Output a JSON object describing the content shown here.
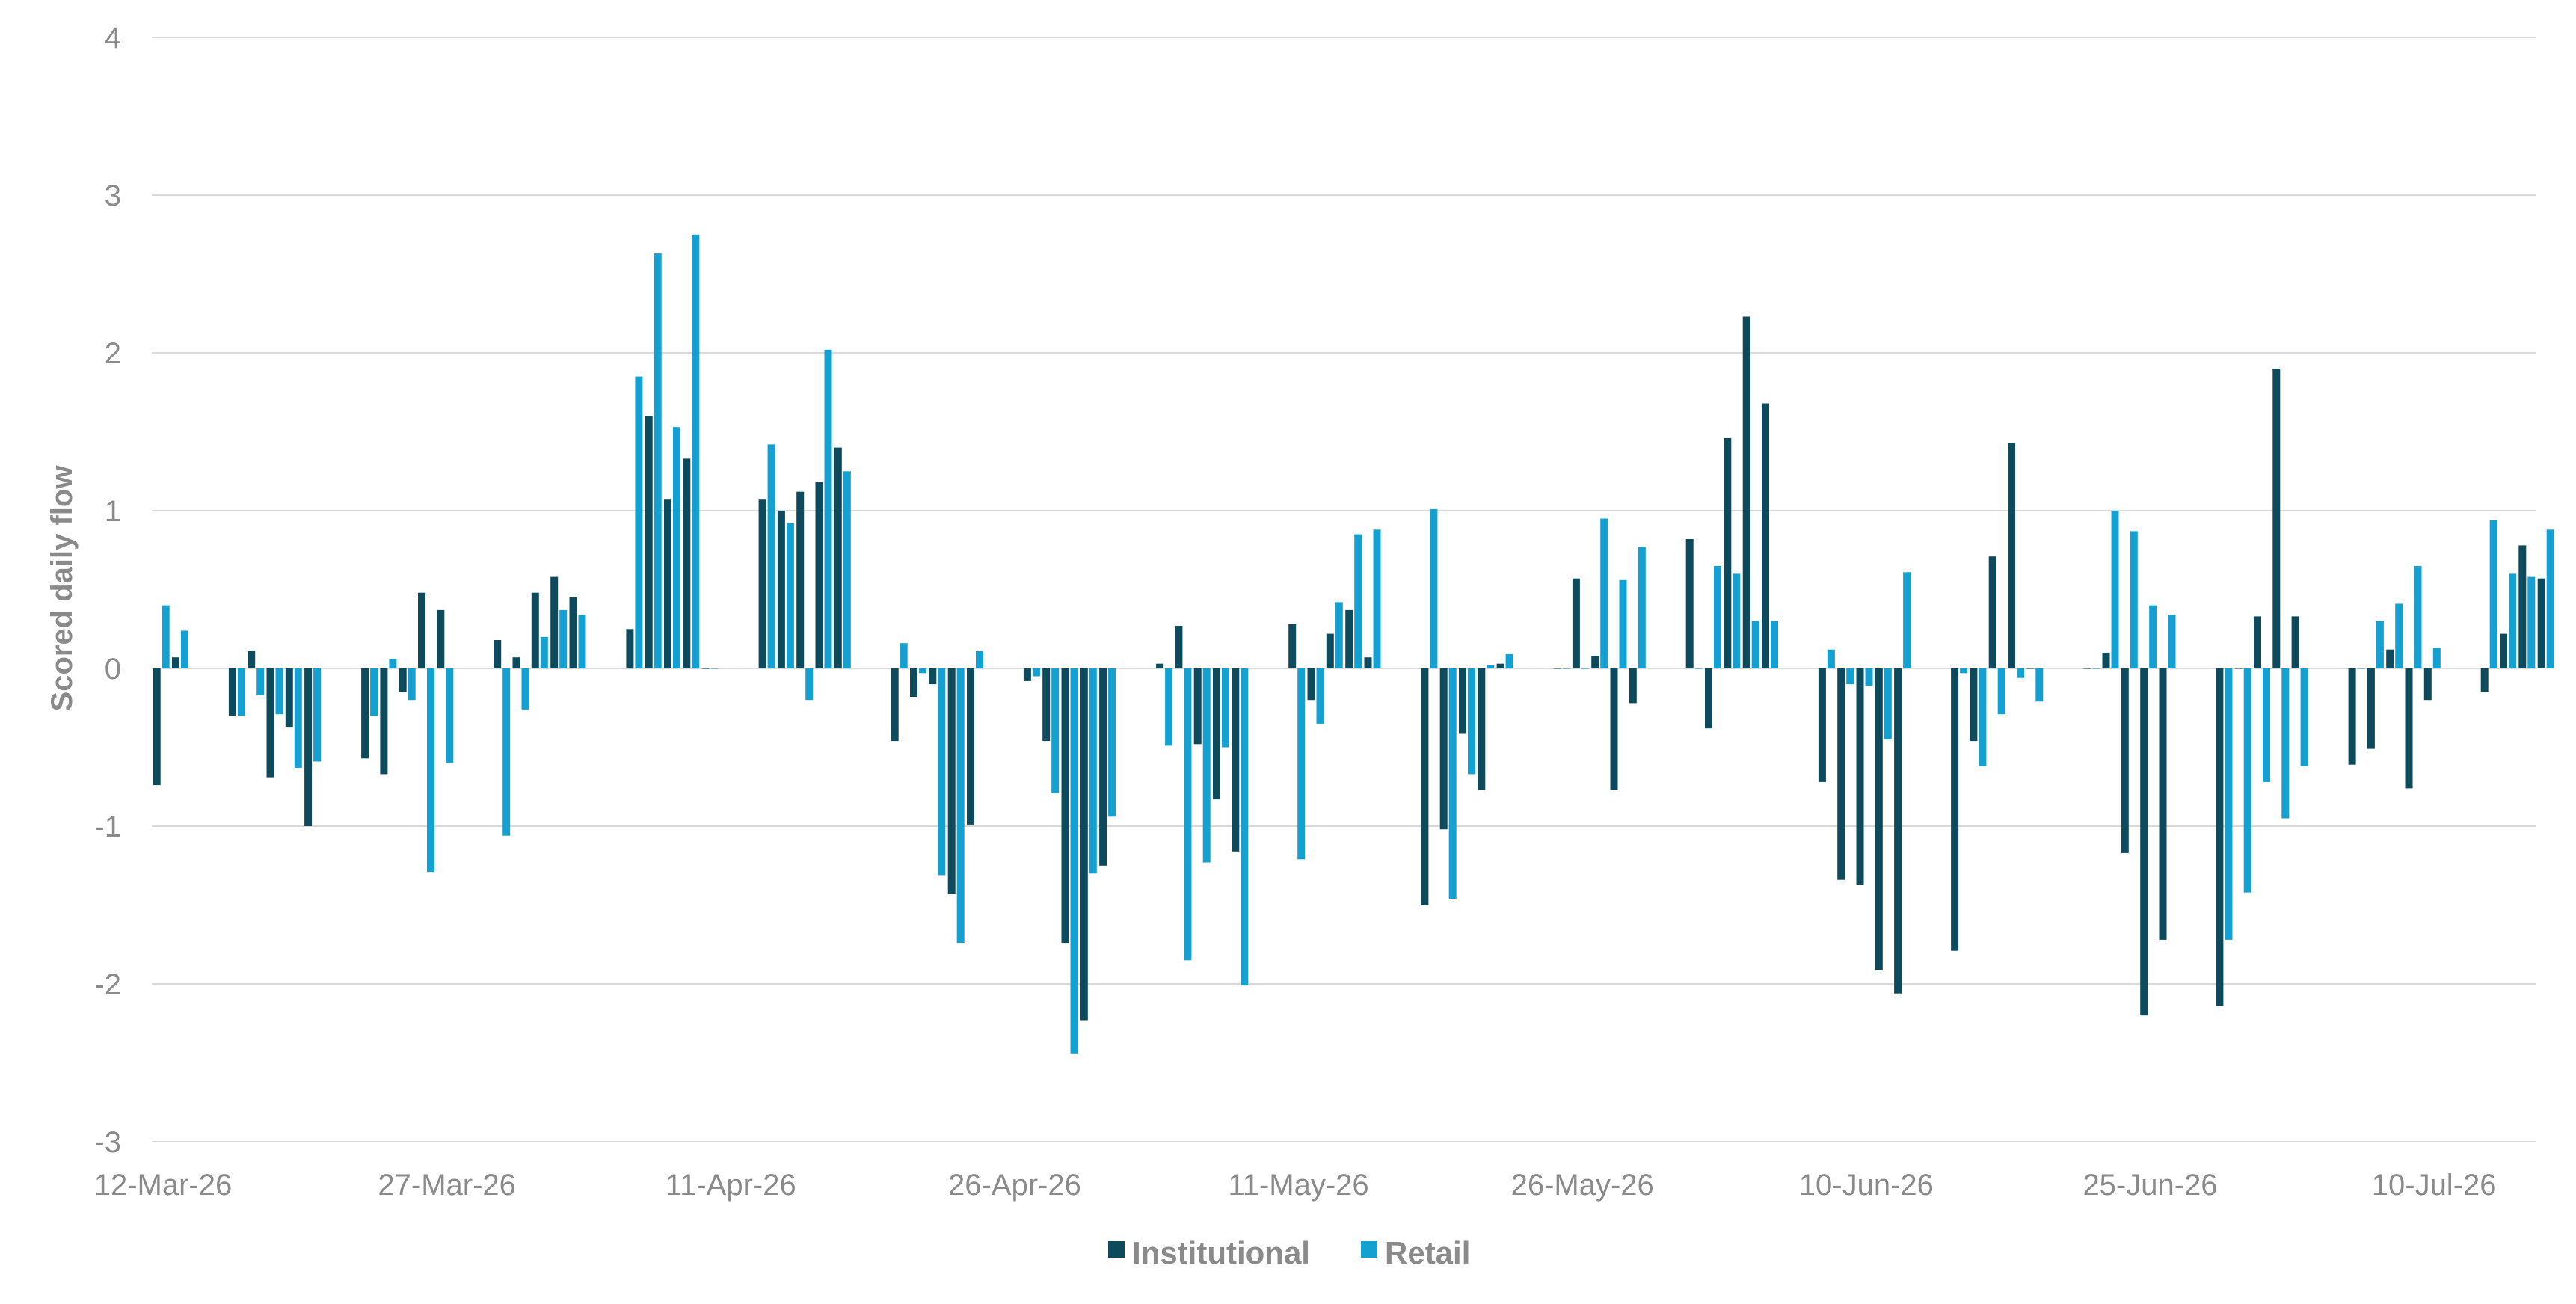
{
  "chart_data": {
    "type": "bar",
    "title": "",
    "xlabel": "",
    "ylabel": "Scored daily flow",
    "ylim": [
      -3,
      4
    ],
    "yticks": [
      4,
      3,
      2,
      1,
      0,
      -1,
      -2,
      -3
    ],
    "grid": true,
    "legend_position": "bottom-center",
    "start_date": "2026-03-12",
    "xtick_labels": [
      {
        "label": "12-Mar-26",
        "date": "2026-03-12"
      },
      {
        "label": "27-Mar-26",
        "date": "2026-03-27"
      },
      {
        "label": "11-Apr-26",
        "date": "2026-04-11"
      },
      {
        "label": "26-Apr-26",
        "date": "2026-04-26"
      },
      {
        "label": "11-May-26",
        "date": "2026-05-11"
      },
      {
        "label": "26-May-26",
        "date": "2026-05-26"
      },
      {
        "label": "10-Jun-26",
        "date": "2026-06-10"
      },
      {
        "label": "25-Jun-26",
        "date": "2026-06-25"
      },
      {
        "label": "10-Jul-26",
        "date": "2026-07-10"
      }
    ],
    "dates": [
      "2026-03-12",
      "2026-03-13",
      "2026-03-16",
      "2026-03-17",
      "2026-03-18",
      "2026-03-19",
      "2026-03-20",
      "2026-03-23",
      "2026-03-24",
      "2026-03-25",
      "2026-03-26",
      "2026-03-27",
      "2026-03-30",
      "2026-03-31",
      "2026-04-01",
      "2026-04-02",
      "2026-04-03",
      "2026-04-06",
      "2026-04-07",
      "2026-04-08",
      "2026-04-09",
      "2026-04-10",
      "2026-04-13",
      "2026-04-14",
      "2026-04-15",
      "2026-04-16",
      "2026-04-17",
      "2026-04-20",
      "2026-04-21",
      "2026-04-22",
      "2026-04-23",
      "2026-04-24",
      "2026-04-27",
      "2026-04-28",
      "2026-04-29",
      "2026-04-30",
      "2026-05-01",
      "2026-05-04",
      "2026-05-05",
      "2026-05-06",
      "2026-05-07",
      "2026-05-08",
      "2026-05-11",
      "2026-05-12",
      "2026-05-13",
      "2026-05-14",
      "2026-05-15",
      "2026-05-18",
      "2026-05-19",
      "2026-05-20",
      "2026-05-21",
      "2026-05-22",
      "2026-05-25",
      "2026-05-26",
      "2026-05-27",
      "2026-05-28",
      "2026-05-29",
      "2026-06-01",
      "2026-06-02",
      "2026-06-03",
      "2026-06-04",
      "2026-06-05",
      "2026-06-08",
      "2026-06-09",
      "2026-06-10",
      "2026-06-11",
      "2026-06-12",
      "2026-06-15",
      "2026-06-16",
      "2026-06-17",
      "2026-06-18",
      "2026-06-19",
      "2026-06-22",
      "2026-06-23",
      "2026-06-24",
      "2026-06-25",
      "2026-06-26",
      "2026-06-29",
      "2026-06-30",
      "2026-07-01",
      "2026-07-02",
      "2026-07-03",
      "2026-07-06",
      "2026-07-07",
      "2026-07-08",
      "2026-07-09",
      "2026-07-10",
      "2026-07-13",
      "2026-07-14",
      "2026-07-15",
      "2026-07-16"
    ],
    "series": [
      {
        "name": "Institutional",
        "color": "#0d4a5c",
        "values": [
          -0.74,
          0.07,
          -0.3,
          0.11,
          -0.69,
          -0.37,
          -1.0,
          -0.57,
          -0.67,
          -0.15,
          0.48,
          0.37,
          0.18,
          0.07,
          0.48,
          0.58,
          0.45,
          0.25,
          1.6,
          1.07,
          1.33,
          0.0,
          1.07,
          1.0,
          1.12,
          1.18,
          1.4,
          -0.46,
          -0.18,
          -0.1,
          -1.43,
          -0.99,
          -0.08,
          -0.46,
          -1.74,
          -2.23,
          -1.25,
          0.03,
          0.27,
          -0.48,
          -0.83,
          -1.16,
          0.28,
          -0.2,
          0.22,
          0.37,
          0.07,
          -1.5,
          -1.02,
          -0.41,
          -0.77,
          0.03,
          0.0,
          0.57,
          0.08,
          -0.77,
          -0.22,
          0.82,
          -0.38,
          1.46,
          2.23,
          1.68,
          -0.72,
          -1.34,
          -1.37,
          -1.91,
          -2.06,
          -1.79,
          -0.46,
          0.71,
          1.43,
          0.0,
          0.0,
          0.1,
          -1.17,
          -2.2,
          -1.72,
          -2.14,
          0.0,
          0.33,
          1.9,
          0.33,
          -0.61,
          -0.51,
          0.12,
          -0.76,
          -0.2,
          -0.15,
          0.22,
          0.78,
          0.57
        ]
      },
      {
        "name": "Retail",
        "color": "#14a0d0",
        "values": [
          0.4,
          0.24,
          -0.3,
          -0.17,
          -0.29,
          -0.63,
          -0.59,
          -0.3,
          0.06,
          -0.2,
          -1.29,
          -0.6,
          -1.06,
          -0.26,
          0.2,
          0.37,
          0.34,
          1.85,
          2.63,
          1.53,
          2.75,
          0.0,
          1.42,
          0.92,
          -0.2,
          2.02,
          1.25,
          0.16,
          -0.03,
          -1.31,
          -1.74,
          0.11,
          -0.05,
          -0.79,
          -2.44,
          -1.3,
          -0.94,
          -0.49,
          -1.85,
          -1.23,
          -0.5,
          -2.01,
          -1.21,
          -0.35,
          0.42,
          0.85,
          0.88,
          1.01,
          -1.46,
          -0.67,
          0.02,
          0.09,
          0.0,
          0.0,
          0.95,
          0.56,
          0.77,
          0.0,
          0.65,
          0.6,
          0.3,
          0.3,
          0.12,
          -0.1,
          -0.11,
          -0.45,
          0.61,
          -0.03,
          -0.62,
          -0.29,
          -0.06,
          -0.21,
          0.0,
          1.0,
          0.87,
          0.4,
          0.34,
          -1.72,
          -1.42,
          -0.72,
          -0.95,
          -0.62,
          0.0,
          0.3,
          0.41,
          0.65,
          0.13,
          0.94,
          0.6,
          0.58,
          0.88
        ]
      }
    ]
  }
}
